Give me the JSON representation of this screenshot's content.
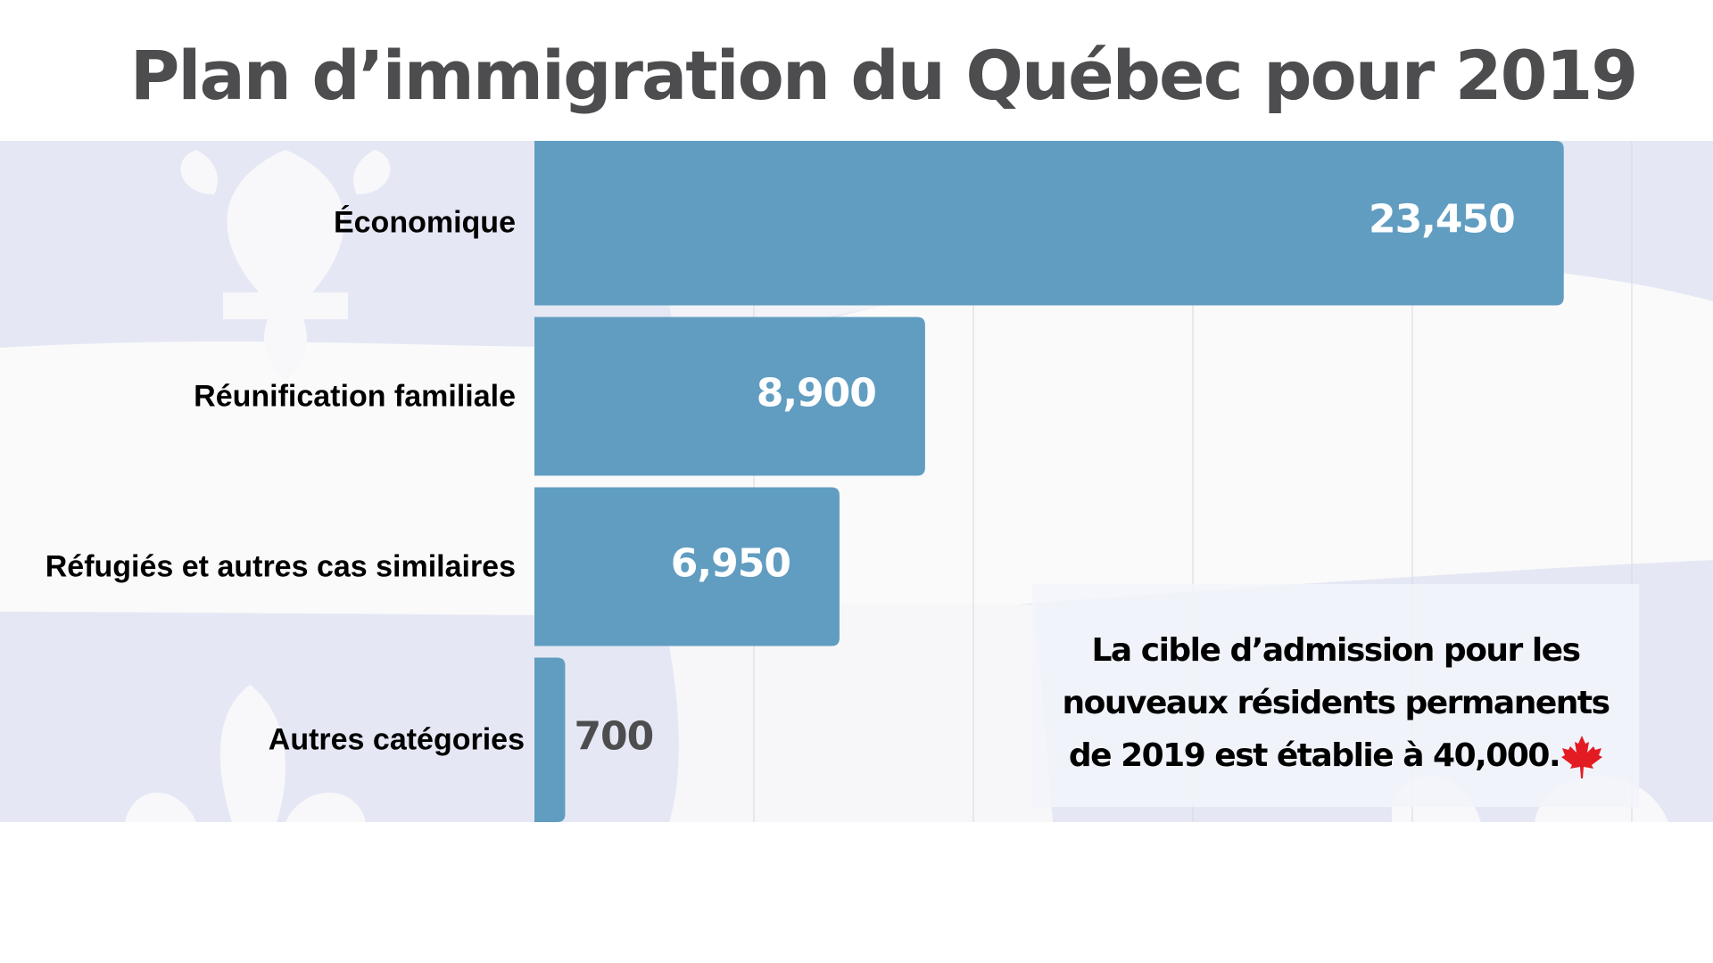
{
  "title": "Plan d’immigration du Québec pour 2019",
  "chart_data": {
    "type": "bar",
    "orientation": "horizontal",
    "title": "Plan d’immigration du Québec pour 2019",
    "categories": [
      "Économique",
      "Réunification familiale",
      "Réfugiés et autres cas similaires",
      "Autres catégories"
    ],
    "values": [
      23450,
      8900,
      6950,
      700
    ],
    "value_labels": [
      "23,450",
      "8,900",
      "6,950",
      "700"
    ],
    "xlim": [
      0,
      25000
    ],
    "grid_step": 5000,
    "grid": true,
    "bar_color": "#619dc1",
    "xlabel": "",
    "ylabel": ""
  },
  "annotation": {
    "lines": [
      "La cible d’admission pour les",
      "nouveaux résidents permanents",
      "de 2019 est établie à 40,000."
    ],
    "icon": "maple-leaf-icon",
    "icon_color": "#e31b23"
  }
}
